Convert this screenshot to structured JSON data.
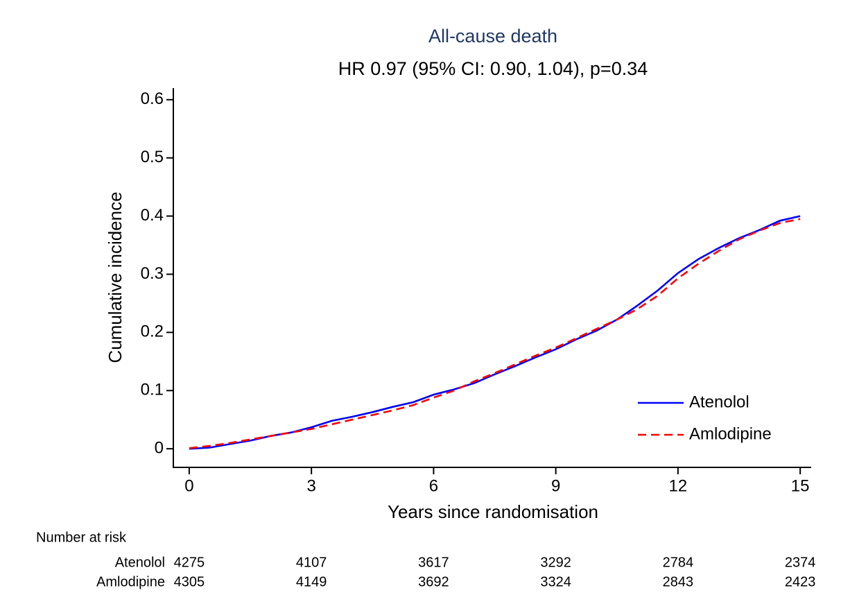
{
  "chart_data": {
    "type": "line",
    "title": "All-cause death",
    "subtitle": "HR 0.97 (95% CI: 0.90, 1.04), p=0.34",
    "x_label": "Years since randomisation",
    "y_label": "Cumulative incidence",
    "x": [
      0,
      0.5,
      1,
      1.5,
      2,
      2.5,
      3,
      3.5,
      4,
      4.5,
      5,
      5.5,
      6,
      6.5,
      7,
      7.5,
      8,
      8.5,
      9,
      9.5,
      10,
      10.5,
      11,
      11.5,
      12,
      12.5,
      13,
      13.5,
      14,
      14.5,
      15
    ],
    "series": [
      {
        "name": "Atenolol",
        "color": "#0000ff",
        "dash": "solid",
        "values": [
          0,
          0.002,
          0.008,
          0.014,
          0.022,
          0.028,
          0.037,
          0.048,
          0.055,
          0.063,
          0.072,
          0.08,
          0.093,
          0.102,
          0.113,
          0.128,
          0.142,
          0.157,
          0.171,
          0.188,
          0.203,
          0.222,
          0.246,
          0.272,
          0.302,
          0.326,
          0.345,
          0.362,
          0.376,
          0.392,
          0.4
        ]
      },
      {
        "name": "Amlodipine",
        "color": "#ff0000",
        "dash": "dashed",
        "values": [
          0.001,
          0.005,
          0.01,
          0.016,
          0.022,
          0.028,
          0.034,
          0.042,
          0.05,
          0.058,
          0.066,
          0.075,
          0.088,
          0.1,
          0.116,
          0.13,
          0.145,
          0.16,
          0.174,
          0.19,
          0.206,
          0.222,
          0.24,
          0.263,
          0.293,
          0.318,
          0.34,
          0.36,
          0.375,
          0.388,
          0.395
        ]
      }
    ],
    "xlim": [
      -0.39,
      15.27
    ],
    "ylim": [
      -0.032,
      0.62
    ],
    "xticks": [
      0,
      3,
      6,
      9,
      12,
      15
    ],
    "yticks": [
      0,
      0.1,
      0.2,
      0.3,
      0.4,
      0.5,
      0.6
    ],
    "grid": false,
    "legend": "lower-right",
    "risk_table": {
      "title": "Number at risk",
      "rows": [
        {
          "name": "Atenolol",
          "values": [
            4275,
            4107,
            3617,
            3292,
            2784,
            2374
          ]
        },
        {
          "name": "Amlodipine",
          "values": [
            4305,
            4149,
            3692,
            3324,
            2843,
            2423
          ]
        }
      ]
    }
  }
}
